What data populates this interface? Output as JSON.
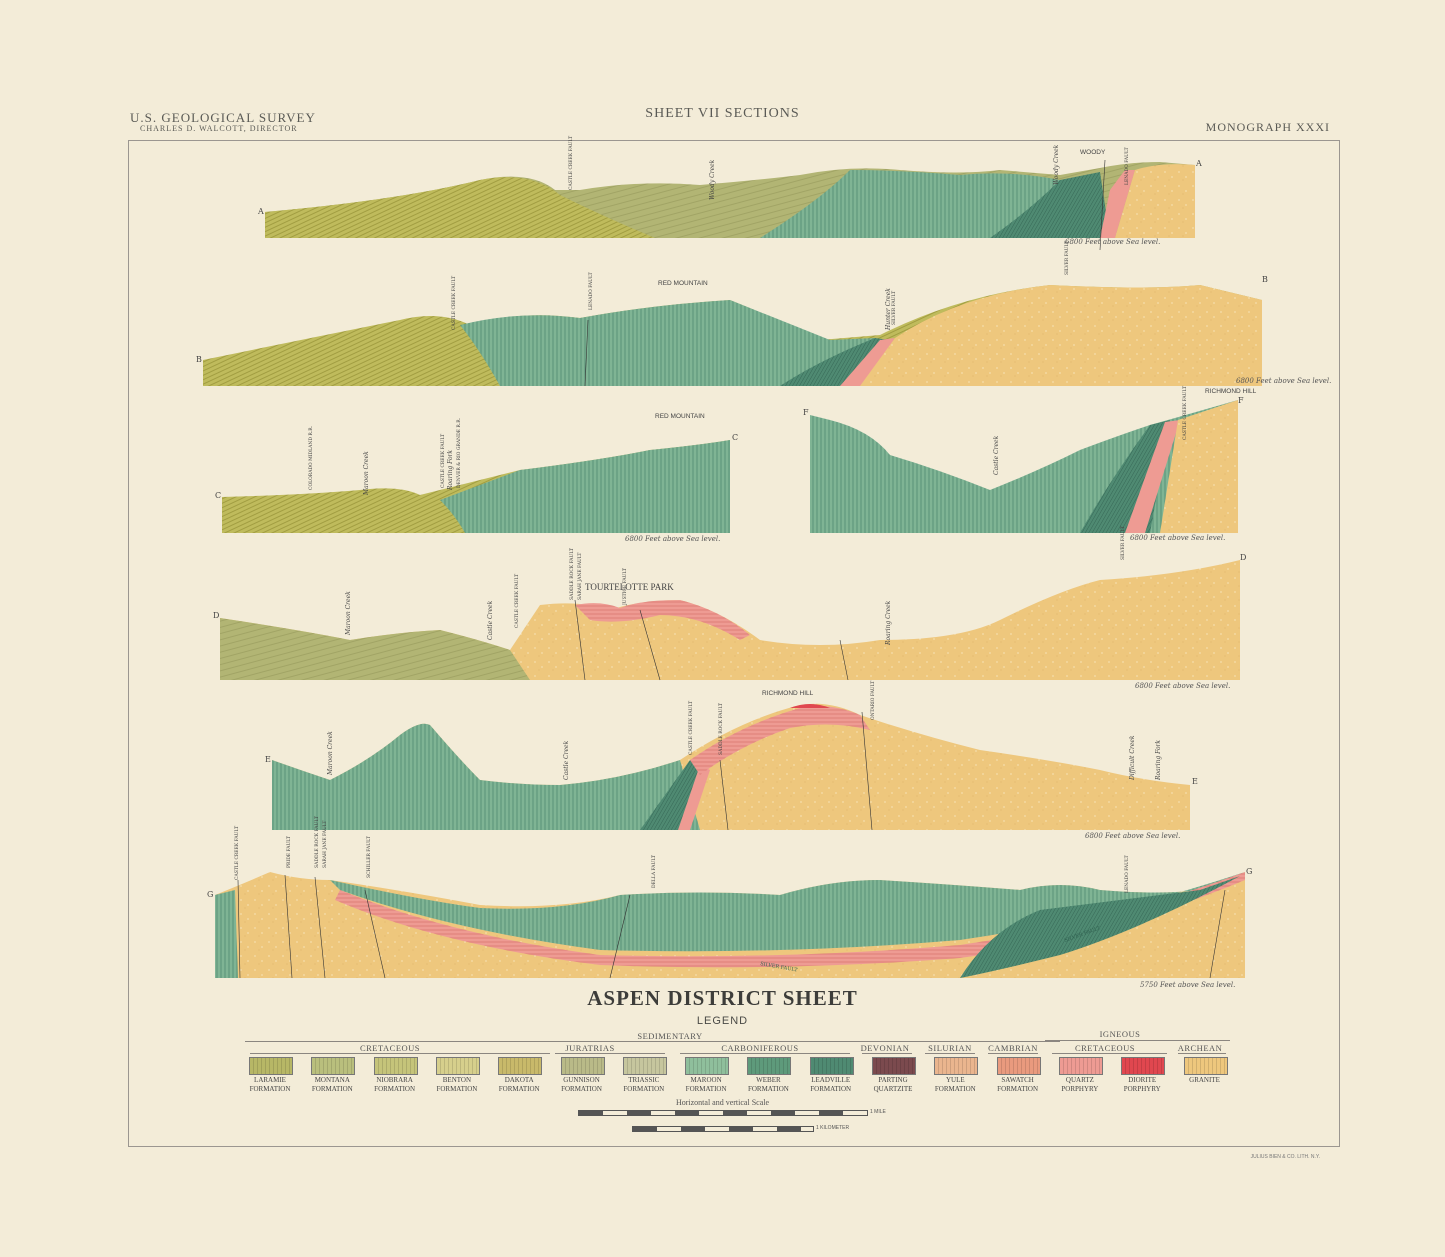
{
  "header": {
    "left_line1": "U.S. GEOLOGICAL SURVEY",
    "left_line2": "CHARLES D. WALCOTT, DIRECTOR",
    "center": "SHEET VII SECTIONS",
    "right": "MONOGRAPH XXXI"
  },
  "sections": [
    {
      "id": "A",
      "end_left": "A",
      "end_right": "A",
      "datum": "6800 Feet above Sea level.",
      "peaks": [
        "WOODY"
      ],
      "labels": [
        "CASTLE CREEK FAULT",
        "Woody Creek",
        "Woody Creek",
        "LENADO FAULT",
        "SILVER FAULT"
      ]
    },
    {
      "id": "B",
      "end_left": "B",
      "end_right": "B",
      "datum": "6800 Feet above Sea level.",
      "peaks": [
        "RED MOUNTAIN"
      ],
      "labels": [
        "CASTLE CREEK FAULT",
        "LENADO FAULT",
        "Hunter Creek",
        "SILVER FAULT"
      ]
    },
    {
      "id": "C",
      "end_left": "C",
      "end_right": "C",
      "datum": "6800 Feet above Sea level.",
      "peaks": [
        "RED MOUNTAIN"
      ],
      "labels": [
        "COLORADO MIDLAND R.R.",
        "Maroon Creek",
        "CASTLE CREEK FAULT",
        "Roaring Fork",
        "DENVER & RIO GRANDE R.R."
      ]
    },
    {
      "id": "F",
      "end_left": "F",
      "end_right": "F",
      "datum": "6800 Feet above Sea level.",
      "peaks": [
        "RICHMOND HILL"
      ],
      "labels": [
        "Castle Creek",
        "CASTLE CREEK FAULT",
        "SILVER FAULT"
      ]
    },
    {
      "id": "D",
      "end_left": "D",
      "end_right": "D",
      "datum": "6800 Feet above Sea level.",
      "peaks": [
        "TOURTELOTTE PARK"
      ],
      "labels": [
        "Maroon Creek",
        "Castle Creek",
        "CASTLE CREEK FAULT",
        "SADDLE ROCK FAULT",
        "SARAH JANE FAULT",
        "JUSTICE FAULT",
        "Roaring Creek"
      ]
    },
    {
      "id": "E",
      "end_left": "E",
      "end_right": "E",
      "datum": "6800 Feet above Sea level.",
      "peaks": [
        "RICHMOND HILL"
      ],
      "labels": [
        "Maroon Creek",
        "Castle Creek",
        "CASTLE CREEK FAULT",
        "SADDLE ROCK FAULT",
        "ONTARIO FAULT",
        "Difficult Creek",
        "Roaring Fork"
      ]
    },
    {
      "id": "G",
      "end_left": "G",
      "end_right": "G",
      "datum": "5750 Feet above Sea level.",
      "peaks": [],
      "labels": [
        "CASTLE CREEK FAULT",
        "PRIDE FAULT",
        "SADDLE ROCK FAULT",
        "SARAH JANE FAULT",
        "SCHILLER FAULT",
        "DELLA FAULT",
        "LENADO FAULT",
        "SILVER FAULT",
        "SILVER FAULT"
      ]
    }
  ],
  "title": "ASPEN DISTRICT SHEET",
  "legend": {
    "label": "LEGEND",
    "supergroups": [
      "SEDIMENTARY",
      "IGNEOUS"
    ],
    "groups": [
      "CRETACEOUS",
      "JURATRIAS",
      "CARBONIFEROUS",
      "DEVONIAN",
      "SILURIAN",
      "CAMBRIAN",
      "CRETACEOUS",
      "ARCHEAN"
    ],
    "units": [
      {
        "line1": "LARAMIE",
        "line2": "FORMATION",
        "color": "#b7b766"
      },
      {
        "line1": "MONTANA",
        "line2": "FORMATION",
        "color": "#b9bf7d"
      },
      {
        "line1": "NIOBRARA",
        "line2": "FORMATION",
        "color": "#c5c47a"
      },
      {
        "line1": "BENTON",
        "line2": "FORMATION",
        "color": "#d6cf8c"
      },
      {
        "line1": "DAKOTA",
        "line2": "FORMATION",
        "color": "#c8b96a"
      },
      {
        "line1": "GUNNISON",
        "line2": "FORMATION",
        "color": "#b9ba88"
      },
      {
        "line1": "TRIASSIC",
        "line2": "FORMATION",
        "color": "#c6c69e"
      },
      {
        "line1": "MAROON",
        "line2": "FORMATION",
        "color": "#8fbf9c"
      },
      {
        "line1": "WEBER",
        "line2": "FORMATION",
        "color": "#5e9a7b"
      },
      {
        "line1": "LEADVILLE",
        "line2": "FORMATION",
        "color": "#4f8a72"
      },
      {
        "line1": "PARTING",
        "line2": "QUARTZITE",
        "color": "#7b4a4e"
      },
      {
        "line1": "YULE",
        "line2": "FORMATION",
        "color": "#eab58e"
      },
      {
        "line1": "SAWATCH",
        "line2": "FORMATION",
        "color": "#e99a7e"
      },
      {
        "line1": "QUARTZ",
        "line2": "PORPHYRY",
        "color": "#ee9b93"
      },
      {
        "line1": "DIORITE",
        "line2": "PORPHYRY",
        "color": "#e0474f"
      },
      {
        "line1": "GRANITE",
        "line2": "",
        "color": "#eec77d"
      }
    ]
  },
  "scale": {
    "label": "Horizontal and vertical Scale",
    "mile": "1 MILE",
    "km": "1 KILOMETER"
  },
  "printer": "JULIUS BIEN & CO. LITH. N.Y."
}
